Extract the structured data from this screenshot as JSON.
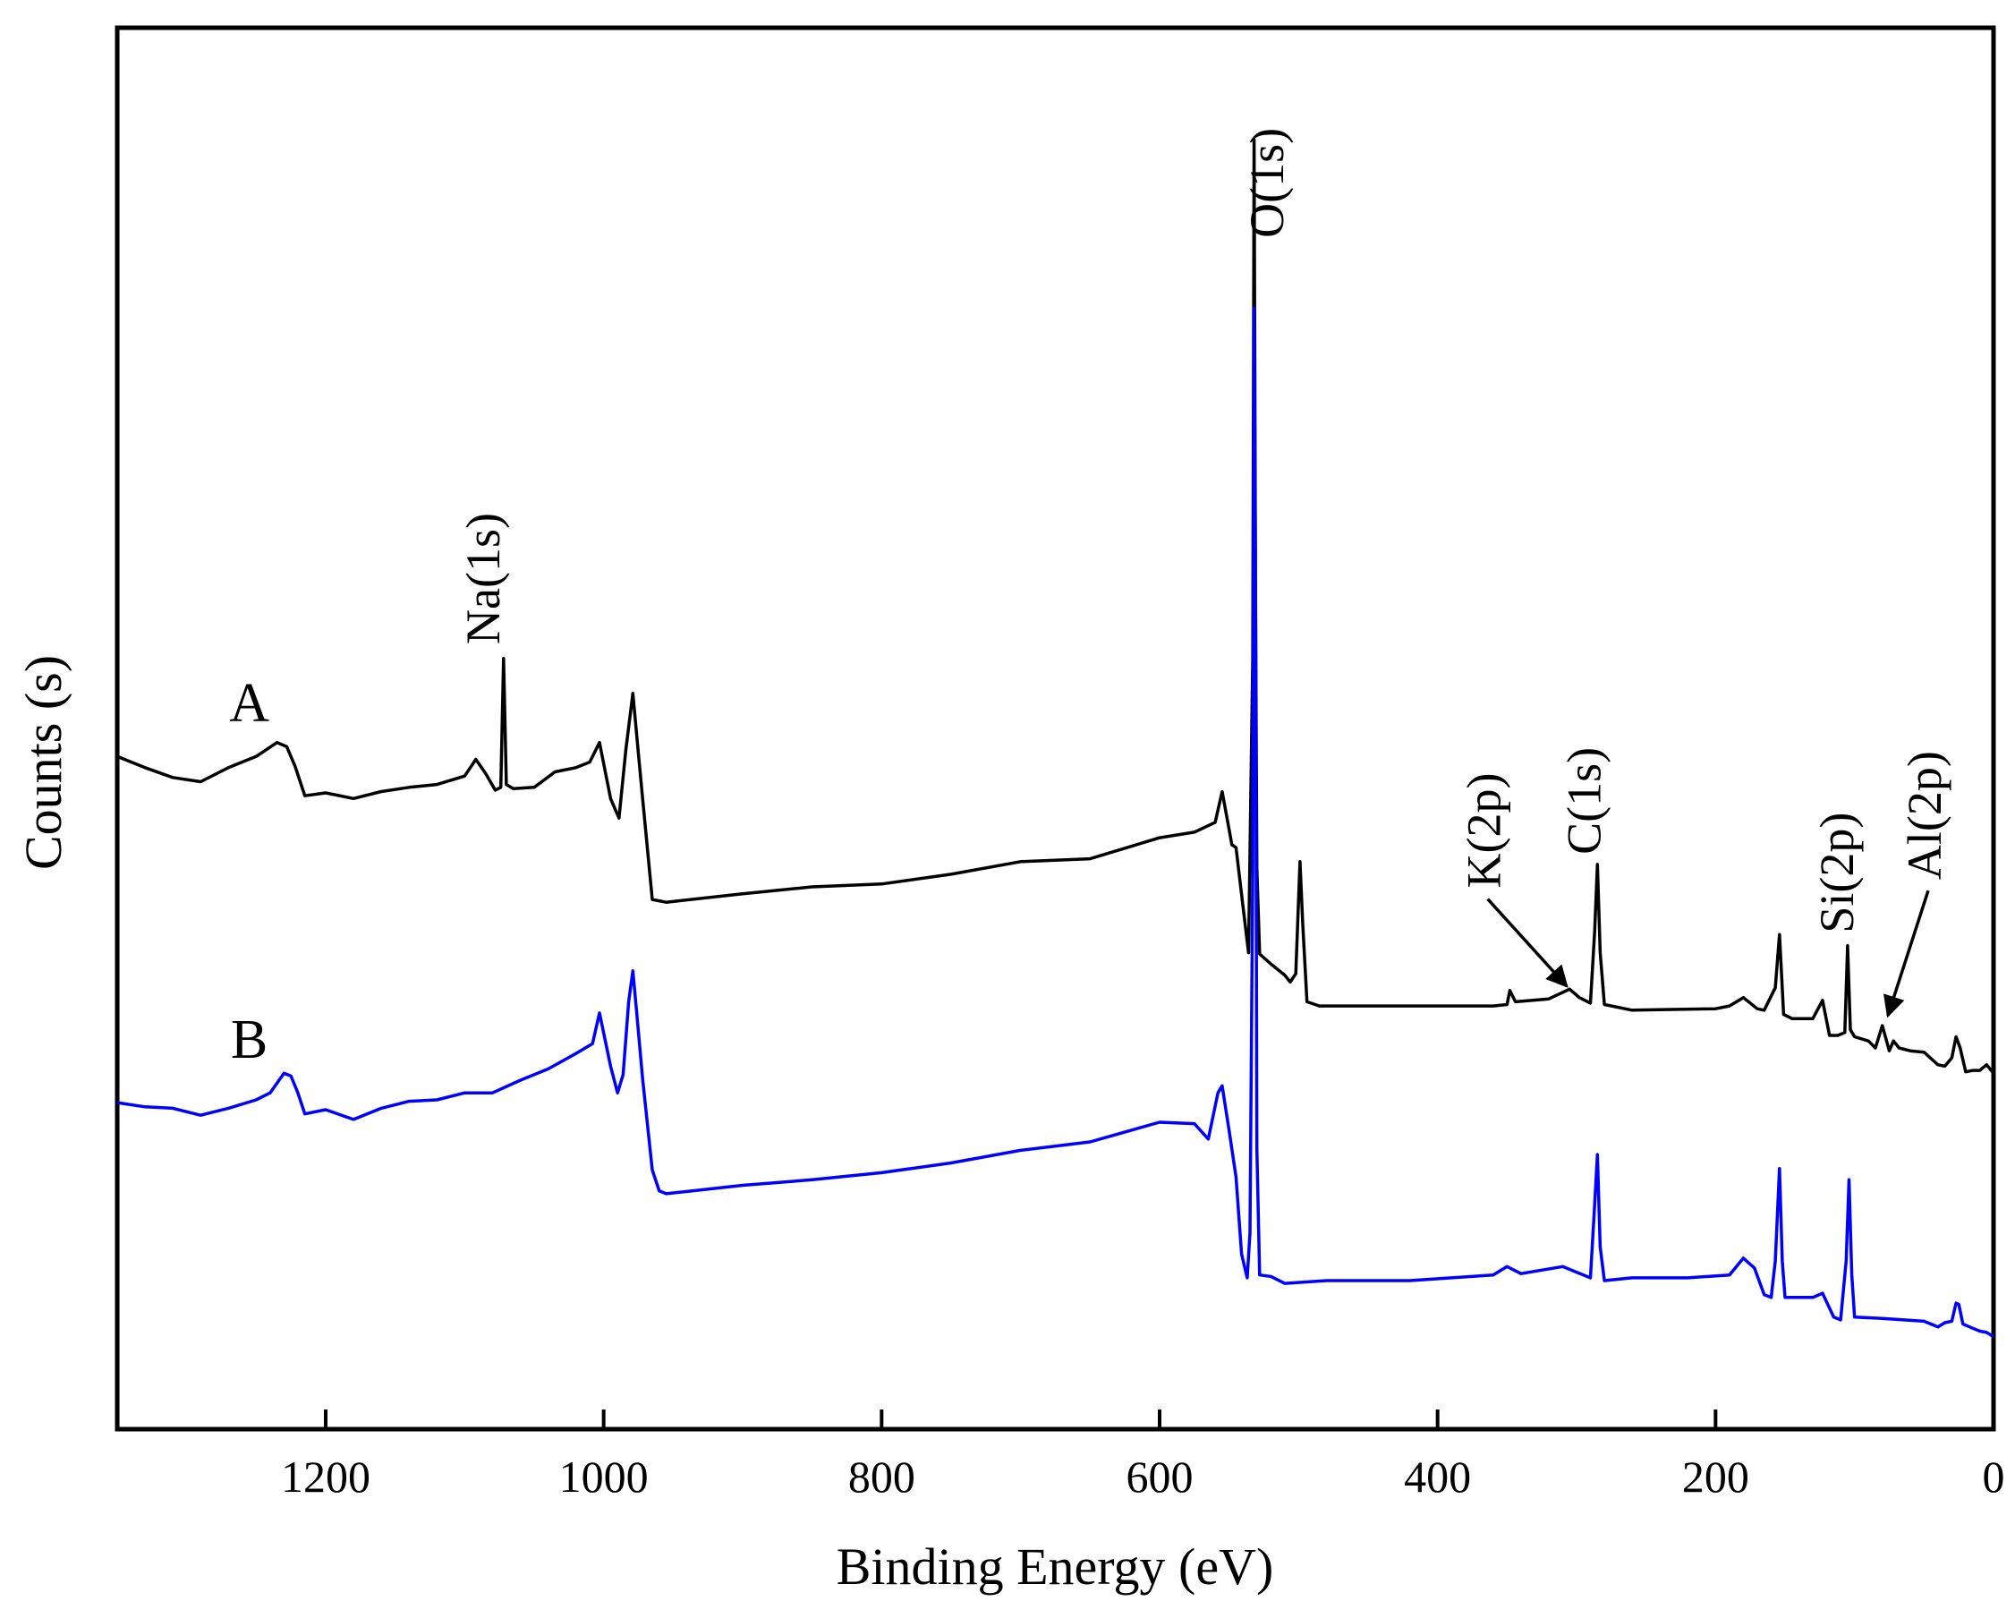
{
  "chart_data": {
    "type": "line",
    "title": "",
    "xlabel": "Binding Energy (eV)",
    "ylabel": "Counts (s)",
    "xlim": [
      1350,
      0
    ],
    "ylim": [
      0,
      100
    ],
    "x_ticks": [
      1200,
      1000,
      800,
      600,
      400,
      200,
      0
    ],
    "y_ticks": [],
    "series": [
      {
        "name": "A",
        "color": "#000000",
        "points": [
          [
            1350,
            48.0
          ],
          [
            1330,
            47.2
          ],
          [
            1310,
            46.5
          ],
          [
            1290,
            46.2
          ],
          [
            1270,
            47.2
          ],
          [
            1250,
            48.0
          ],
          [
            1235,
            49.0
          ],
          [
            1228,
            48.7
          ],
          [
            1222,
            47.3
          ],
          [
            1215,
            45.2
          ],
          [
            1200,
            45.4
          ],
          [
            1180,
            45.0
          ],
          [
            1160,
            45.5
          ],
          [
            1140,
            45.8
          ],
          [
            1120,
            46.0
          ],
          [
            1100,
            46.6
          ],
          [
            1092,
            47.8
          ],
          [
            1085,
            46.8
          ],
          [
            1078,
            45.6
          ],
          [
            1074,
            45.8
          ],
          [
            1072,
            55.0
          ],
          [
            1070,
            46.0
          ],
          [
            1065,
            45.7
          ],
          [
            1050,
            45.8
          ],
          [
            1035,
            46.9
          ],
          [
            1020,
            47.2
          ],
          [
            1010,
            47.6
          ],
          [
            1003,
            49.0
          ],
          [
            995,
            45.0
          ],
          [
            989,
            43.6
          ],
          [
            984,
            48.5
          ],
          [
            979,
            52.5
          ],
          [
            975,
            48.2
          ],
          [
            972,
            45.0
          ],
          [
            965,
            37.8
          ],
          [
            955,
            37.6
          ],
          [
            900,
            38.2
          ],
          [
            850,
            38.7
          ],
          [
            800,
            38.9
          ],
          [
            750,
            39.6
          ],
          [
            700,
            40.5
          ],
          [
            650,
            40.7
          ],
          [
            600,
            42.2
          ],
          [
            575,
            42.6
          ],
          [
            560,
            43.3
          ],
          [
            555,
            45.5
          ],
          [
            548,
            41.7
          ],
          [
            545,
            41.5
          ],
          [
            540,
            37.3
          ],
          [
            536,
            34.0
          ],
          [
            533,
            55.0
          ],
          [
            532,
            92.0
          ],
          [
            531,
            60.0
          ],
          [
            530,
            40.0
          ],
          [
            528,
            33.9
          ],
          [
            520,
            33.2
          ],
          [
            510,
            32.4
          ],
          [
            506,
            31.9
          ],
          [
            502,
            32.5
          ],
          [
            499,
            40.5
          ],
          [
            497,
            36.0
          ],
          [
            494,
            30.5
          ],
          [
            485,
            30.2
          ],
          [
            450,
            30.2
          ],
          [
            400,
            30.2
          ],
          [
            360,
            30.2
          ],
          [
            350,
            30.3
          ],
          [
            348,
            31.3
          ],
          [
            344,
            30.5
          ],
          [
            320,
            30.7
          ],
          [
            305,
            31.4
          ],
          [
            298,
            30.8
          ],
          [
            290,
            30.4
          ],
          [
            287,
            35.5
          ],
          [
            285,
            40.3
          ],
          [
            283,
            34.0
          ],
          [
            280,
            30.3
          ],
          [
            260,
            29.9
          ],
          [
            200,
            30.0
          ],
          [
            190,
            30.2
          ],
          [
            180,
            30.8
          ],
          [
            170,
            30.0
          ],
          [
            165,
            29.9
          ],
          [
            157,
            31.5
          ],
          [
            154,
            35.3
          ],
          [
            151,
            29.6
          ],
          [
            145,
            29.3
          ],
          [
            130,
            29.3
          ],
          [
            123,
            30.6
          ],
          [
            118,
            28.1
          ],
          [
            112,
            28.1
          ],
          [
            107,
            28.3
          ],
          [
            105,
            34.5
          ],
          [
            103,
            28.5
          ],
          [
            100,
            28.0
          ],
          [
            90,
            27.7
          ],
          [
            85,
            27.2
          ],
          [
            80,
            28.8
          ],
          [
            75,
            27.0
          ],
          [
            72,
            27.7
          ],
          [
            68,
            27.2
          ],
          [
            60,
            27.0
          ],
          [
            50,
            26.9
          ],
          [
            40,
            26.0
          ],
          [
            35,
            25.9
          ],
          [
            30,
            26.5
          ],
          [
            27,
            28.0
          ],
          [
            24,
            27.2
          ],
          [
            20,
            25.5
          ],
          [
            15,
            25.6
          ],
          [
            10,
            25.6
          ],
          [
            5,
            26.0
          ],
          [
            0,
            25.4
          ]
        ]
      },
      {
        "name": "B",
        "color": "#0000ff",
        "points": [
          [
            1350,
            23.3
          ],
          [
            1330,
            23.0
          ],
          [
            1310,
            22.9
          ],
          [
            1290,
            22.4
          ],
          [
            1270,
            22.9
          ],
          [
            1250,
            23.5
          ],
          [
            1240,
            24.0
          ],
          [
            1230,
            25.4
          ],
          [
            1225,
            25.2
          ],
          [
            1220,
            24.0
          ],
          [
            1215,
            22.5
          ],
          [
            1200,
            22.8
          ],
          [
            1180,
            22.1
          ],
          [
            1160,
            22.9
          ],
          [
            1140,
            23.4
          ],
          [
            1120,
            23.5
          ],
          [
            1100,
            24.0
          ],
          [
            1080,
            24.0
          ],
          [
            1060,
            24.9
          ],
          [
            1040,
            25.7
          ],
          [
            1020,
            26.8
          ],
          [
            1008,
            27.5
          ],
          [
            1003,
            29.7
          ],
          [
            995,
            25.9
          ],
          [
            990,
            24.0
          ],
          [
            986,
            25.3
          ],
          [
            982,
            30.5
          ],
          [
            979,
            32.7
          ],
          [
            976,
            29.5
          ],
          [
            972,
            25.0
          ],
          [
            965,
            18.5
          ],
          [
            960,
            17.0
          ],
          [
            955,
            16.8
          ],
          [
            900,
            17.4
          ],
          [
            850,
            17.8
          ],
          [
            800,
            18.3
          ],
          [
            750,
            19.0
          ],
          [
            700,
            19.9
          ],
          [
            650,
            20.5
          ],
          [
            600,
            21.9
          ],
          [
            575,
            21.8
          ],
          [
            565,
            20.7
          ],
          [
            558,
            24.0
          ],
          [
            555,
            24.5
          ],
          [
            550,
            21.3
          ],
          [
            545,
            18.0
          ],
          [
            541,
            12.5
          ],
          [
            537,
            10.8
          ],
          [
            535,
            14.0
          ],
          [
            533,
            40.0
          ],
          [
            532,
            80.0
          ],
          [
            531,
            60.0
          ],
          [
            530,
            20.0
          ],
          [
            528,
            11.0
          ],
          [
            520,
            10.9
          ],
          [
            510,
            10.4
          ],
          [
            480,
            10.6
          ],
          [
            420,
            10.6
          ],
          [
            360,
            11.0
          ],
          [
            350,
            11.6
          ],
          [
            340,
            11.1
          ],
          [
            310,
            11.6
          ],
          [
            300,
            11.2
          ],
          [
            290,
            10.8
          ],
          [
            287,
            16.0
          ],
          [
            285,
            19.6
          ],
          [
            283,
            13.0
          ],
          [
            280,
            10.6
          ],
          [
            260,
            10.8
          ],
          [
            220,
            10.8
          ],
          [
            190,
            11.0
          ],
          [
            180,
            12.2
          ],
          [
            172,
            11.5
          ],
          [
            165,
            9.6
          ],
          [
            160,
            9.4
          ],
          [
            157,
            12.0
          ],
          [
            154,
            18.6
          ],
          [
            152,
            12.0
          ],
          [
            150,
            9.4
          ],
          [
            130,
            9.4
          ],
          [
            123,
            9.7
          ],
          [
            115,
            8.0
          ],
          [
            110,
            7.8
          ],
          [
            106,
            12.0
          ],
          [
            104,
            17.8
          ],
          [
            102,
            11.0
          ],
          [
            100,
            8.0
          ],
          [
            80,
            7.9
          ],
          [
            50,
            7.7
          ],
          [
            40,
            7.3
          ],
          [
            35,
            7.6
          ],
          [
            30,
            7.7
          ],
          [
            27,
            9.0
          ],
          [
            25,
            8.9
          ],
          [
            22,
            7.5
          ],
          [
            15,
            7.2
          ],
          [
            10,
            7.0
          ],
          [
            5,
            6.9
          ],
          [
            0,
            6.6
          ]
        ]
      }
    ],
    "series_labels": [
      {
        "text": "A",
        "x": 1255,
        "y": 50.5
      },
      {
        "text": "B",
        "x": 1255,
        "y": 26.5
      }
    ],
    "annotations": [
      {
        "text": "Na(1s)",
        "x": 1075,
        "y": 56,
        "rotated": true
      },
      {
        "text": "O(1s)",
        "x": 511,
        "y": 85,
        "rotated": true
      },
      {
        "text": "K(2p)",
        "x": 355,
        "y": 38.6,
        "rotated": true,
        "arrow_to": [
          307,
          31.6
        ]
      },
      {
        "text": "C(1s)",
        "x": 283,
        "y": 41,
        "rotated": true
      },
      {
        "text": "Si(2p)",
        "x": 101,
        "y": 35.4,
        "rotated": true
      },
      {
        "text": "Al(2p)",
        "x": 38,
        "y": 39.2,
        "rotated": true,
        "arrow_to": [
          76,
          29.5
        ]
      }
    ]
  }
}
